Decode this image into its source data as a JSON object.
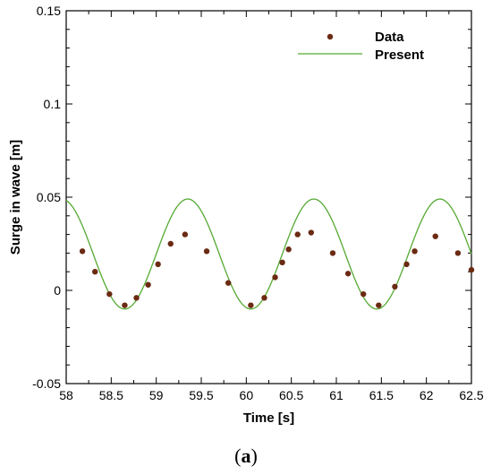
{
  "chart_data": {
    "type": "scatter+line",
    "xlabel": "Time [s]",
    "ylabel": "Surge in wave [m]",
    "xlim": [
      58,
      62.5
    ],
    "ylim": [
      -0.05,
      0.15
    ],
    "xticks": [
      "58",
      "58.5",
      "59",
      "59.5",
      "60",
      "60.5",
      "61",
      "61.5",
      "62",
      "62.5"
    ],
    "yticks": [
      "-0.05",
      "0",
      "0.05",
      "0.1",
      "0.15"
    ],
    "legend_position": "top-right",
    "grid": false,
    "series": [
      {
        "name": "Data",
        "type": "scatter",
        "color": "#6b2a12",
        "x": [
          58.18,
          58.32,
          58.48,
          58.65,
          58.78,
          58.91,
          59.02,
          59.16,
          59.32,
          59.56,
          59.8,
          60.05,
          60.2,
          60.32,
          60.4,
          60.47,
          60.57,
          60.72,
          60.96,
          61.13,
          61.3,
          61.47,
          61.65,
          61.78,
          61.87,
          62.1,
          62.35,
          62.5
        ],
        "y": [
          0.021,
          0.01,
          -0.002,
          -0.008,
          -0.004,
          0.003,
          0.014,
          0.025,
          0.03,
          0.021,
          0.004,
          -0.008,
          -0.004,
          0.007,
          0.015,
          0.022,
          0.03,
          0.031,
          0.02,
          0.009,
          -0.002,
          -0.008,
          0.002,
          0.014,
          0.021,
          0.029,
          0.02,
          0.011
        ]
      },
      {
        "name": "Present",
        "type": "line",
        "color": "#55aa33",
        "period": 1.4,
        "amplitude": 0.0295,
        "mean": 0.0195,
        "peak_time": 59.35
      }
    ]
  },
  "caption": {
    "open": "(",
    "letter": "a",
    "close": ")"
  }
}
